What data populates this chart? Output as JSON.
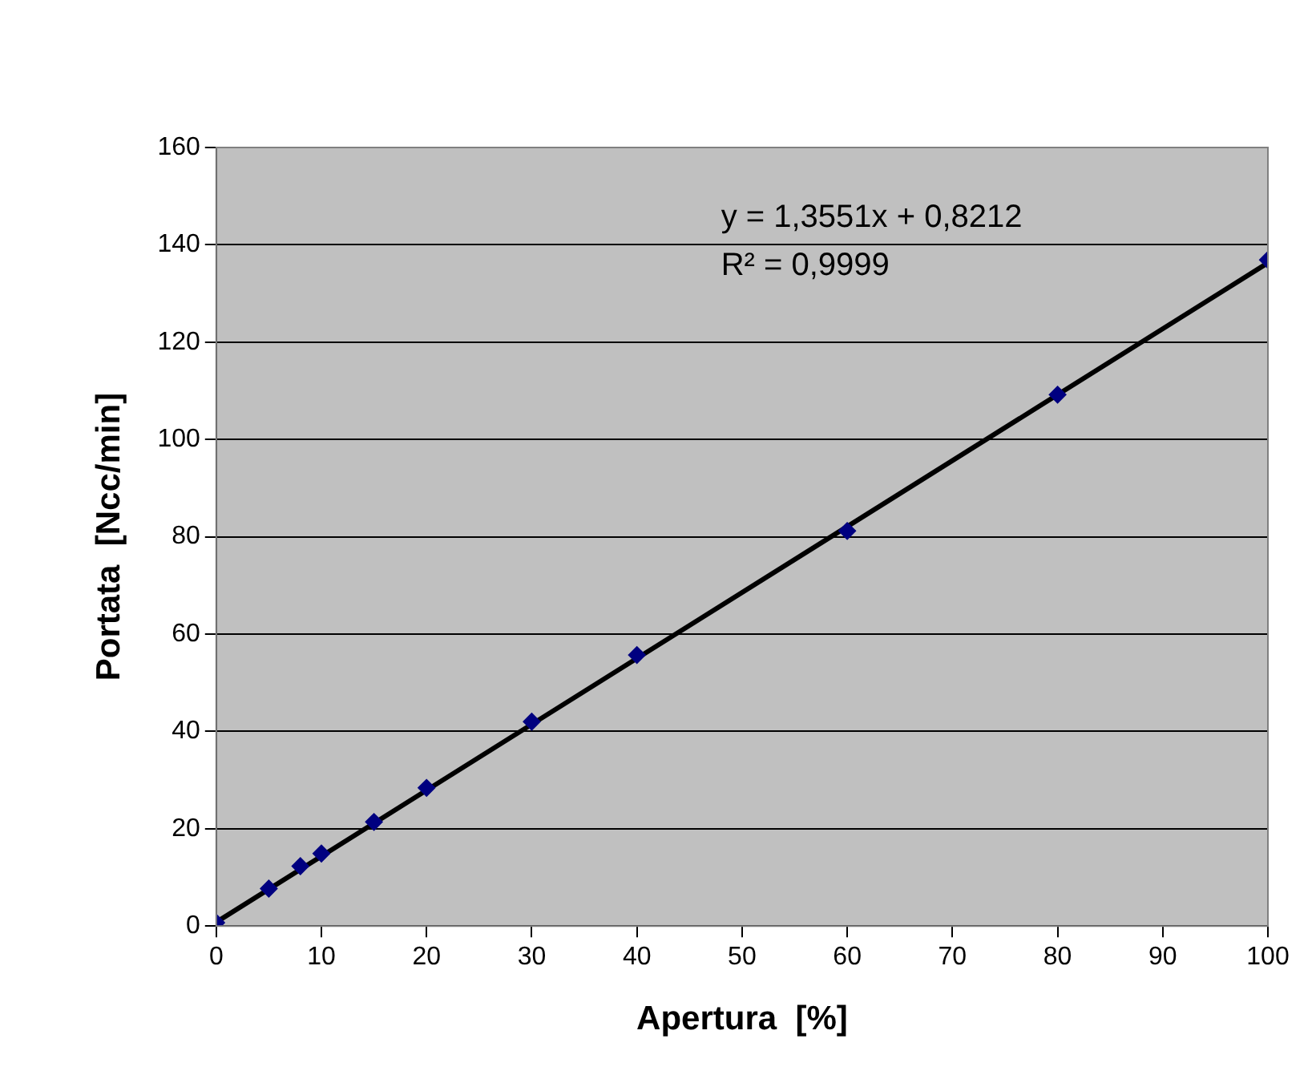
{
  "chart_data": {
    "type": "scatter",
    "xlabel": "Apertura  [%]",
    "ylabel": "Portata  [Ncc/min]",
    "x": [
      0,
      5,
      8,
      10,
      15,
      20,
      30,
      40,
      60,
      80,
      100
    ],
    "series": [
      {
        "type": "scatter",
        "color": "#000080",
        "values": [
          0.7,
          7.7,
          12.3,
          14.9,
          21.4,
          28.4,
          42,
          55.7,
          81.2,
          109.2,
          136.9
        ]
      },
      {
        "type": "line",
        "color": "#000000",
        "marker": "none",
        "x": [
          0,
          100
        ],
        "values": [
          0.8,
          136.3
        ]
      }
    ],
    "annotations": [
      "y = 1,3551x + 0,8212",
      "R² = 0,9999"
    ],
    "xlim": [
      0,
      100
    ],
    "xticks": [
      0,
      10,
      20,
      30,
      40,
      50,
      60,
      70,
      80,
      90,
      100
    ],
    "ylim": [
      0,
      160
    ],
    "yticks": [
      0,
      20,
      40,
      60,
      80,
      100,
      120,
      140,
      160
    ],
    "grid": "y",
    "marker": "diamond",
    "legend": false
  }
}
